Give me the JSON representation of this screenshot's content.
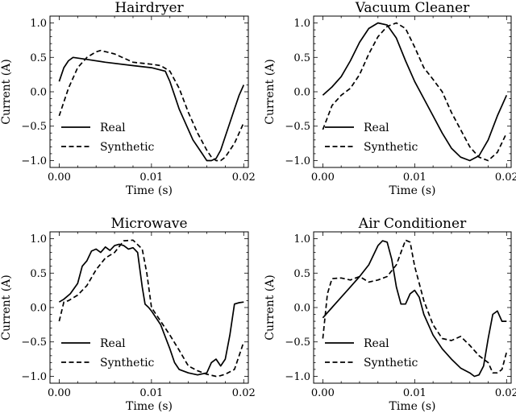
{
  "chart_data": [
    {
      "type": "line",
      "title": "Hairdryer",
      "xlabel": "Time (s)",
      "ylabel": "Current (A)",
      "xlim": [
        -0.001,
        0.0205
      ],
      "ylim": [
        -1.1,
        1.1
      ],
      "xticks": [
        0.0,
        0.01,
        0.02
      ],
      "xtick_labels": [
        "0.00",
        "0.01",
        "0.02"
      ],
      "yticks": [
        1.0,
        0.5,
        0.0,
        -0.5,
        -1.0
      ],
      "ytick_labels": [
        "1.0",
        "0.5",
        "0.0",
        "−0.5",
        "−1.0"
      ],
      "grid": false,
      "legend_position": "lower-left",
      "series": [
        {
          "name": "Real",
          "dash": "solid",
          "x": [
            0.0,
            0.0005,
            0.001,
            0.0015,
            0.003,
            0.005,
            0.008,
            0.01,
            0.0115,
            0.012,
            0.0125,
            0.013,
            0.0135,
            0.014,
            0.0145,
            0.015,
            0.0155,
            0.016,
            0.0165,
            0.017,
            0.0175,
            0.018,
            0.0185,
            0.019,
            0.0195,
            0.02
          ],
          "y": [
            0.15,
            0.35,
            0.45,
            0.5,
            0.47,
            0.43,
            0.38,
            0.35,
            0.3,
            0.15,
            -0.05,
            -0.25,
            -0.4,
            -0.55,
            -0.7,
            -0.8,
            -0.9,
            -1.0,
            -1.0,
            -0.97,
            -0.85,
            -0.65,
            -0.45,
            -0.25,
            -0.05,
            0.1
          ]
        },
        {
          "name": "Synthetic",
          "dash": "dashed",
          "x": [
            0.0,
            0.001,
            0.002,
            0.003,
            0.004,
            0.0045,
            0.006,
            0.008,
            0.01,
            0.011,
            0.012,
            0.013,
            0.014,
            0.015,
            0.016,
            0.0165,
            0.017,
            0.0175,
            0.018,
            0.019,
            0.02
          ],
          "y": [
            -0.35,
            0.05,
            0.35,
            0.5,
            0.58,
            0.6,
            0.55,
            0.43,
            0.4,
            0.38,
            0.3,
            0.05,
            -0.3,
            -0.6,
            -0.85,
            -0.95,
            -1.0,
            -1.0,
            -0.95,
            -0.75,
            -0.45
          ]
        }
      ]
    },
    {
      "type": "line",
      "title": "Vacuum Cleaner",
      "xlabel": "Time (s)",
      "ylabel": "Current (A)",
      "xlim": [
        -0.001,
        0.0205
      ],
      "ylim": [
        -1.1,
        1.1
      ],
      "xticks": [
        0.0,
        0.01,
        0.02
      ],
      "xtick_labels": [
        "0.00",
        "0.01",
        "0.02"
      ],
      "yticks": [
        1.0,
        0.5,
        0.0,
        -0.5,
        -1.0
      ],
      "ytick_labels": [
        "1.0",
        "0.5",
        "0.0",
        "−0.5",
        "−1.0"
      ],
      "grid": false,
      "legend_position": "lower-left",
      "series": [
        {
          "name": "Real",
          "dash": "solid",
          "x": [
            0.0,
            0.001,
            0.002,
            0.003,
            0.004,
            0.005,
            0.006,
            0.007,
            0.008,
            0.009,
            0.01,
            0.011,
            0.012,
            0.013,
            0.014,
            0.015,
            0.016,
            0.017,
            0.018,
            0.019,
            0.02
          ],
          "y": [
            -0.05,
            0.07,
            0.22,
            0.45,
            0.72,
            0.92,
            1.0,
            0.97,
            0.78,
            0.45,
            0.15,
            -0.1,
            -0.35,
            -0.6,
            -0.82,
            -0.95,
            -1.0,
            -0.93,
            -0.7,
            -0.35,
            -0.05
          ]
        },
        {
          "name": "Synthetic",
          "dash": "dashed",
          "x": [
            0.0,
            0.001,
            0.002,
            0.003,
            0.004,
            0.005,
            0.006,
            0.007,
            0.008,
            0.009,
            0.01,
            0.011,
            0.012,
            0.013,
            0.014,
            0.015,
            0.016,
            0.017,
            0.018,
            0.019,
            0.02
          ],
          "y": [
            -0.55,
            -0.2,
            -0.05,
            0.05,
            0.25,
            0.55,
            0.8,
            0.95,
            1.0,
            0.92,
            0.65,
            0.35,
            0.18,
            0.0,
            -0.3,
            -0.55,
            -0.8,
            -0.95,
            -1.0,
            -0.88,
            -0.6
          ]
        }
      ]
    },
    {
      "type": "line",
      "title": "Microwave",
      "xlabel": "Time (s)",
      "ylabel": "Current (A)",
      "xlim": [
        -0.001,
        0.0205
      ],
      "ylim": [
        -1.1,
        1.1
      ],
      "xticks": [
        0.0,
        0.01,
        0.02
      ],
      "xtick_labels": [
        "0.00",
        "0.01",
        "0.02"
      ],
      "yticks": [
        1.0,
        0.5,
        0.0,
        -0.5,
        -1.0
      ],
      "ytick_labels": [
        "1.0",
        "0.5",
        "0.0",
        "−0.5",
        "−1.0"
      ],
      "grid": false,
      "legend_position": "lower-left",
      "series": [
        {
          "name": "Real",
          "dash": "solid",
          "x": [
            0.0,
            0.0005,
            0.0012,
            0.002,
            0.0025,
            0.003,
            0.0035,
            0.004,
            0.0045,
            0.005,
            0.0055,
            0.006,
            0.0065,
            0.007,
            0.0075,
            0.008,
            0.0085,
            0.009,
            0.0093,
            0.0097,
            0.01,
            0.011,
            0.012,
            0.0125,
            0.013,
            0.014,
            0.015,
            0.016,
            0.0165,
            0.017,
            0.0175,
            0.018,
            0.0185,
            0.019,
            0.0195,
            0.02
          ],
          "y": [
            0.08,
            0.12,
            0.2,
            0.35,
            0.6,
            0.68,
            0.82,
            0.85,
            0.8,
            0.88,
            0.83,
            0.9,
            0.92,
            0.9,
            0.85,
            0.87,
            0.8,
            0.3,
            0.05,
            0.0,
            -0.05,
            -0.25,
            -0.6,
            -0.8,
            -0.9,
            -0.95,
            -0.98,
            -0.95,
            -0.8,
            -0.75,
            -0.85,
            -0.75,
            -0.4,
            0.05,
            0.07,
            0.08
          ]
        },
        {
          "name": "Synthetic",
          "dash": "dashed",
          "x": [
            0.0,
            0.0005,
            0.001,
            0.002,
            0.003,
            0.004,
            0.005,
            0.006,
            0.007,
            0.008,
            0.009,
            0.0095,
            0.01,
            0.011,
            0.012,
            0.013,
            0.014,
            0.015,
            0.016,
            0.017,
            0.0175,
            0.018,
            0.019,
            0.0195,
            0.02
          ],
          "y": [
            -0.2,
            0.08,
            0.1,
            0.18,
            0.32,
            0.55,
            0.72,
            0.8,
            0.97,
            0.98,
            0.85,
            0.5,
            0.0,
            -0.2,
            -0.4,
            -0.62,
            -0.85,
            -0.92,
            -0.97,
            -1.0,
            -0.99,
            -0.97,
            -0.9,
            -0.7,
            -0.5
          ]
        }
      ]
    },
    {
      "type": "line",
      "title": "Air Conditioner",
      "xlabel": "Time (s)",
      "ylabel": "Current (A)",
      "xlim": [
        -0.001,
        0.0205
      ],
      "ylim": [
        -1.1,
        1.1
      ],
      "xticks": [
        0.0,
        0.01,
        0.02
      ],
      "xtick_labels": [
        "0.00",
        "0.01",
        "0.02"
      ],
      "yticks": [
        1.0,
        0.5,
        0.0,
        -0.5,
        -1.0
      ],
      "ytick_labels": [
        "1.0",
        "0.5",
        "0.0",
        "−0.5",
        "−1.0"
      ],
      "grid": false,
      "legend_position": "lower-left",
      "series": [
        {
          "name": "Real",
          "dash": "solid",
          "x": [
            0.0,
            0.001,
            0.002,
            0.003,
            0.004,
            0.005,
            0.006,
            0.0065,
            0.007,
            0.0075,
            0.008,
            0.0085,
            0.009,
            0.0095,
            0.01,
            0.0105,
            0.011,
            0.012,
            0.013,
            0.014,
            0.015,
            0.016,
            0.0165,
            0.017,
            0.0175,
            0.018,
            0.0185,
            0.019,
            0.0195,
            0.02
          ],
          "y": [
            -0.15,
            0.0,
            0.15,
            0.3,
            0.45,
            0.62,
            0.9,
            0.97,
            0.95,
            0.7,
            0.3,
            0.05,
            0.05,
            0.2,
            0.25,
            0.15,
            -0.1,
            -0.4,
            -0.6,
            -0.75,
            -0.88,
            -0.95,
            -1.0,
            -0.98,
            -0.85,
            -0.45,
            -0.1,
            -0.05,
            -0.2,
            -0.2
          ]
        },
        {
          "name": "Synthetic",
          "dash": "dashed",
          "x": [
            0.0,
            0.0005,
            0.001,
            0.002,
            0.003,
            0.004,
            0.005,
            0.006,
            0.007,
            0.008,
            0.009,
            0.0095,
            0.01,
            0.011,
            0.012,
            0.013,
            0.014,
            0.015,
            0.016,
            0.017,
            0.018,
            0.0185,
            0.019,
            0.0195,
            0.02
          ],
          "y": [
            -0.45,
            0.2,
            0.42,
            0.43,
            0.4,
            0.45,
            0.37,
            0.4,
            0.45,
            0.62,
            0.98,
            0.95,
            0.6,
            0.1,
            -0.25,
            -0.45,
            -0.48,
            -0.42,
            -0.55,
            -0.7,
            -0.8,
            -0.95,
            -0.95,
            -0.9,
            -0.65
          ]
        }
      ]
    }
  ]
}
